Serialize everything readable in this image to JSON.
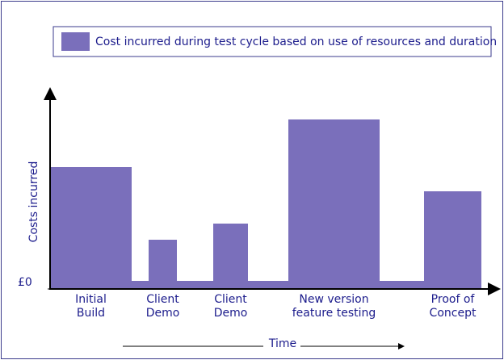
{
  "chart_data": {
    "type": "step-bar",
    "legend": "Cost incurred during test cycle based on use of resources and duration",
    "ylabel": "Costs incurred",
    "xlabel": "Time",
    "categories": [
      [
        "Initial",
        "Build"
      ],
      null,
      [
        "Client",
        "Demo"
      ],
      null,
      [
        "Client",
        "Demo"
      ],
      null,
      [
        "New version",
        "feature testing"
      ],
      null,
      [
        "Proof of",
        "Concept"
      ]
    ],
    "bins": [
      0,
      101,
      122,
      157,
      202,
      245,
      295,
      408,
      463,
      534
    ],
    "values": [
      151,
      10,
      61,
      10,
      81,
      10,
      210,
      10,
      121
    ],
    "color": "#7a6fbb",
    "xlim": [
      0,
      553
    ],
    "ylim": [
      0,
      250
    ],
    "yticks": [
      {
        "value": 0,
        "label": "£0"
      }
    ]
  }
}
